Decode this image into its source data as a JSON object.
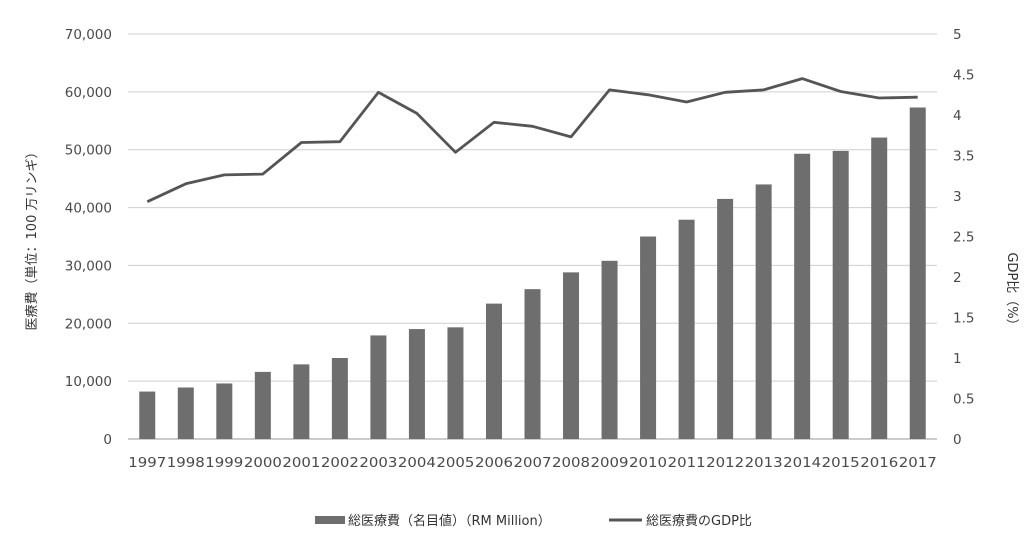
{
  "chart_data": {
    "type": "bar",
    "categories": [
      "1997",
      "1998",
      "1999",
      "2000",
      "2001",
      "2002",
      "2003",
      "2004",
      "2005",
      "2006",
      "2007",
      "2008",
      "2009",
      "2010",
      "2011",
      "2012",
      "2013",
      "2014",
      "2015",
      "2016",
      "2017"
    ],
    "series": [
      {
        "name": "総医療費（名目値）（RM Million）",
        "type": "bar",
        "axis": "left",
        "color": "#6e6e6e",
        "values": [
          8200,
          8900,
          9600,
          11600,
          12900,
          14000,
          17900,
          19000,
          19300,
          23400,
          25900,
          28800,
          30800,
          35000,
          37900,
          41500,
          44000,
          49300,
          49800,
          52100,
          57300
        ]
      },
      {
        "name": "総医療費のGDP比",
        "type": "line",
        "axis": "right",
        "color": "#555555",
        "values": [
          2.93,
          3.15,
          3.26,
          3.27,
          3.66,
          3.67,
          4.28,
          4.02,
          3.54,
          3.91,
          3.86,
          3.73,
          4.31,
          4.25,
          4.16,
          4.28,
          4.31,
          4.45,
          4.29,
          4.21,
          4.22
        ]
      }
    ],
    "ylabel": "医療費（単位：100 万リンギ）",
    "y2label": "GDP比（%）",
    "ylim": [
      0,
      70000
    ],
    "y2lim": [
      0,
      5
    ],
    "yticks": [
      "0",
      "10,000",
      "20,000",
      "30,000",
      "40,000",
      "50,000",
      "60,000",
      "70,000"
    ],
    "y2ticks": [
      "0",
      "0.5",
      "1",
      "1.5",
      "2",
      "2.5",
      "3",
      "3.5",
      "4",
      "4.5",
      "5"
    ],
    "grid": true,
    "legend": "bottom"
  }
}
